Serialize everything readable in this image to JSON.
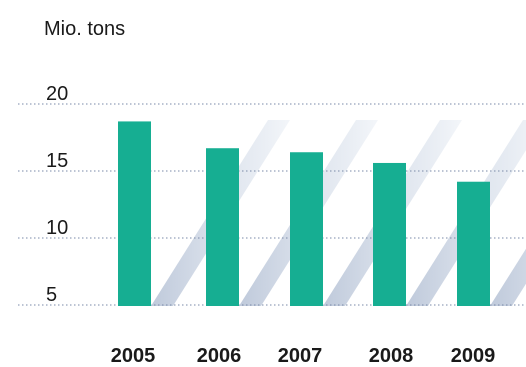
{
  "chart_data": {
    "type": "bar",
    "unit_label": "Mio. tons",
    "categories": [
      "2005",
      "2006",
      "2007",
      "2008",
      "2009"
    ],
    "values": [
      18.7,
      16.7,
      16.4,
      15.6,
      14.2
    ],
    "yticks": [
      5,
      10,
      15,
      20
    ],
    "ylim": [
      3.9,
      20
    ],
    "grid": true,
    "colors": {
      "bar": "#16ae92",
      "stripe": "#d3dbe7",
      "grid": "#7a8aa8",
      "text": "#1a1a1a"
    }
  }
}
